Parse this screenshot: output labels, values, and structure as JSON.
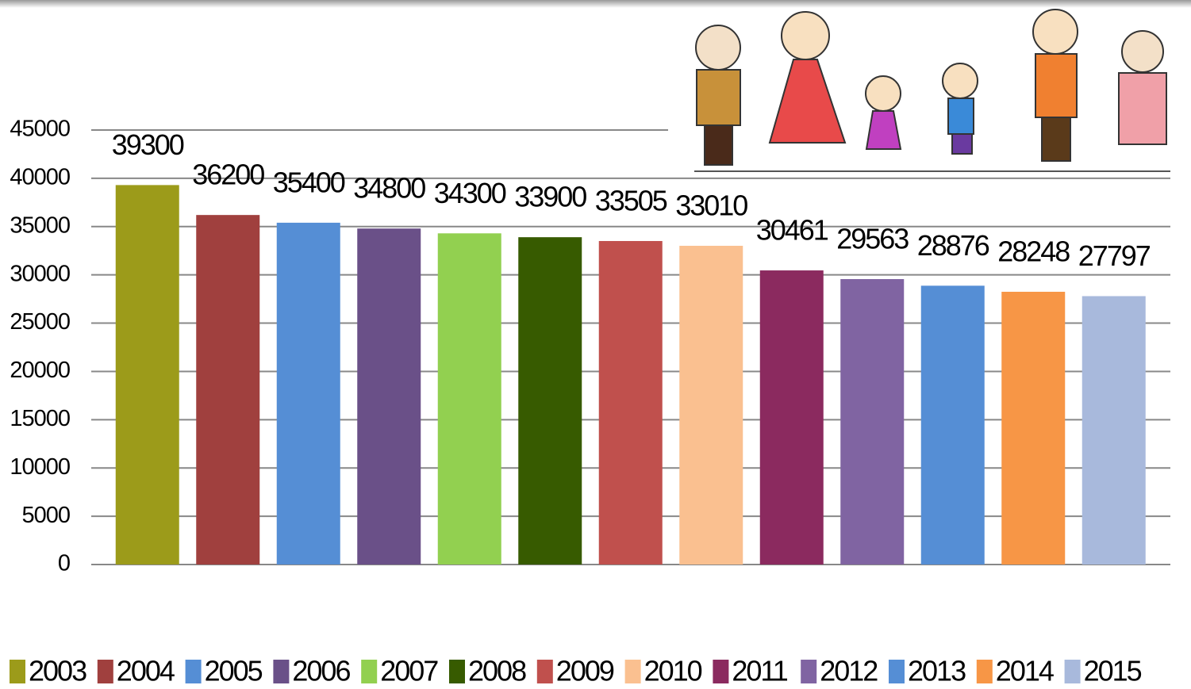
{
  "chart_data": {
    "type": "bar",
    "categories": [
      null
    ],
    "series": [
      {
        "name": "2003",
        "color": "#9c9b1a",
        "values": [
          39300
        ]
      },
      {
        "name": "2004",
        "color": "#a0403e",
        "values": [
          36200
        ]
      },
      {
        "name": "2005",
        "color": "#558ed5",
        "values": [
          35400
        ]
      },
      {
        "name": "2006",
        "color": "#6a5088",
        "values": [
          34800
        ]
      },
      {
        "name": "2007",
        "color": "#92d050",
        "values": [
          34300
        ]
      },
      {
        "name": "2008",
        "color": "#375b00",
        "values": [
          33900
        ]
      },
      {
        "name": "2009",
        "color": "#c0504d",
        "values": [
          33505
        ]
      },
      {
        "name": "2010",
        "color": "#fac090",
        "values": [
          33010
        ]
      },
      {
        "name": "2011",
        "color": "#8b2a5f",
        "values": [
          30461
        ]
      },
      {
        "name": "2012",
        "color": "#8064a2",
        "values": [
          29563
        ]
      },
      {
        "name": "2013",
        "color": "#558ed5",
        "values": [
          28876
        ]
      },
      {
        "name": "2014",
        "color": "#f79646",
        "values": [
          28248
        ]
      },
      {
        "name": "2015",
        "color": "#a8b9dc",
        "values": [
          27797
        ]
      }
    ],
    "ylim": [
      0,
      45000
    ],
    "yticks": [
      0,
      5000,
      10000,
      15000,
      20000,
      25000,
      30000,
      35000,
      40000,
      45000
    ],
    "grid": true,
    "legend": "bottom"
  }
}
